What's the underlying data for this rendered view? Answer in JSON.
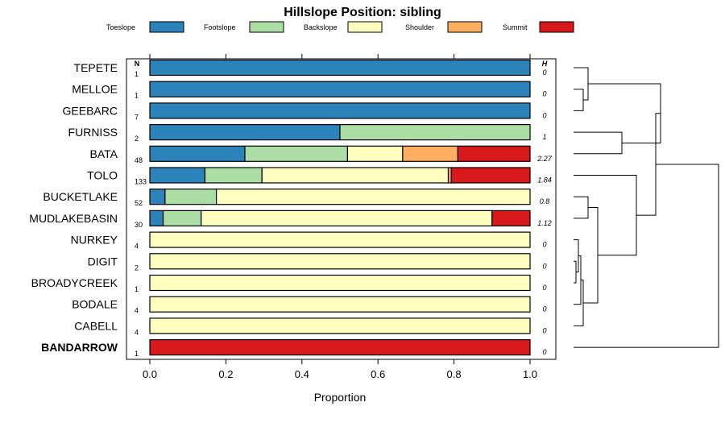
{
  "chart_data": {
    "type": "bar",
    "stacked": true,
    "orientation": "horizontal",
    "title": "Hillslope Position: sibling",
    "xlabel": "Proportion",
    "ylabel": "",
    "xlim": [
      0,
      1
    ],
    "xticks": [
      "0.0",
      "0.2",
      "0.4",
      "0.6",
      "0.8",
      "1.0"
    ],
    "n_header": "N",
    "h_header": "H",
    "legend_position": "top",
    "grid": false,
    "series": [
      {
        "name": "Toeslope",
        "color": "#2b83ba"
      },
      {
        "name": "Footslope",
        "color": "#abdda4"
      },
      {
        "name": "Backslope",
        "color": "#ffffbf"
      },
      {
        "name": "Shoulder",
        "color": "#fdae61"
      },
      {
        "name": "Summit",
        "color": "#d7191c"
      }
    ],
    "rows": [
      {
        "label": "TEPETE",
        "n": "1",
        "h": "0",
        "bold": false,
        "values": [
          1.0,
          0,
          0,
          0,
          0
        ]
      },
      {
        "label": "MELLOE",
        "n": "1",
        "h": "0",
        "bold": false,
        "values": [
          1.0,
          0,
          0,
          0,
          0
        ]
      },
      {
        "label": "GEEBARC",
        "n": "7",
        "h": "0",
        "bold": false,
        "values": [
          1.0,
          0,
          0,
          0,
          0
        ]
      },
      {
        "label": "FURNISS",
        "n": "2",
        "h": "1",
        "bold": false,
        "values": [
          0.5,
          0.5,
          0,
          0,
          0
        ]
      },
      {
        "label": "BATA",
        "n": "48",
        "h": "2.27",
        "bold": false,
        "values": [
          0.25,
          0.27,
          0.145,
          0.145,
          0.19
        ]
      },
      {
        "label": "TOLO",
        "n": "133",
        "h": "1.84",
        "bold": false,
        "values": [
          0.145,
          0.15,
          0.49,
          0.008,
          0.207
        ]
      },
      {
        "label": "BUCKETLAKE",
        "n": "52",
        "h": "0.8",
        "bold": false,
        "values": [
          0.04,
          0.135,
          0.825,
          0,
          0
        ]
      },
      {
        "label": "MUDLAKEBASIN",
        "n": "30",
        "h": "1.12",
        "bold": false,
        "values": [
          0.035,
          0.1,
          0.765,
          0,
          0.1
        ]
      },
      {
        "label": "NURKEY",
        "n": "4",
        "h": "0",
        "bold": false,
        "values": [
          0,
          0,
          1.0,
          0,
          0
        ]
      },
      {
        "label": "DIGIT",
        "n": "2",
        "h": "0",
        "bold": false,
        "values": [
          0,
          0,
          1.0,
          0,
          0
        ]
      },
      {
        "label": "BROADYCREEK",
        "n": "1",
        "h": "0",
        "bold": false,
        "values": [
          0,
          0,
          1.0,
          0,
          0
        ]
      },
      {
        "label": "BODALE",
        "n": "4",
        "h": "0",
        "bold": false,
        "values": [
          0,
          0,
          1.0,
          0,
          0
        ]
      },
      {
        "label": "CABELL",
        "n": "4",
        "h": "0",
        "bold": false,
        "values": [
          0,
          0,
          1.0,
          0,
          0
        ]
      },
      {
        "label": "BANDARROW",
        "n": "1",
        "h": "0",
        "bold": true,
        "values": [
          0,
          0,
          0,
          0,
          1.0
        ]
      }
    ],
    "dendrogram": {
      "leaves": [
        "TEPETE",
        "MELLOE",
        "GEEBARC",
        "FURNISS",
        "BATA",
        "TOLO",
        "BUCKETLAKE",
        "MUDLAKEBASIN",
        "NURKEY",
        "DIGIT",
        "BROADYCREEK",
        "BODALE",
        "CABELL",
        "BANDARROW"
      ],
      "merges": [
        {
          "a": 1,
          "b": 2,
          "height": 0.02
        },
        {
          "a": 0,
          "b": 14,
          "height": 0.03
        },
        {
          "a": 3,
          "b": 4,
          "height": 0.1
        },
        {
          "a": 15,
          "b": 16,
          "height": 0.18
        },
        {
          "a": 6,
          "b": 7,
          "height": 0.03
        },
        {
          "a": 9,
          "b": 10,
          "height": 0.005
        },
        {
          "a": 8,
          "b": 19,
          "height": 0.01
        },
        {
          "a": 11,
          "b": 20,
          "height": 0.015
        },
        {
          "a": 12,
          "b": 21,
          "height": 0.02
        },
        {
          "a": 18,
          "b": 22,
          "height": 0.05
        },
        {
          "a": 5,
          "b": 23,
          "height": 0.13
        },
        {
          "a": 17,
          "b": 24,
          "height": 0.17
        },
        {
          "a": 13,
          "b": 25,
          "height": 0.3
        }
      ],
      "max_height": 0.3
    }
  }
}
